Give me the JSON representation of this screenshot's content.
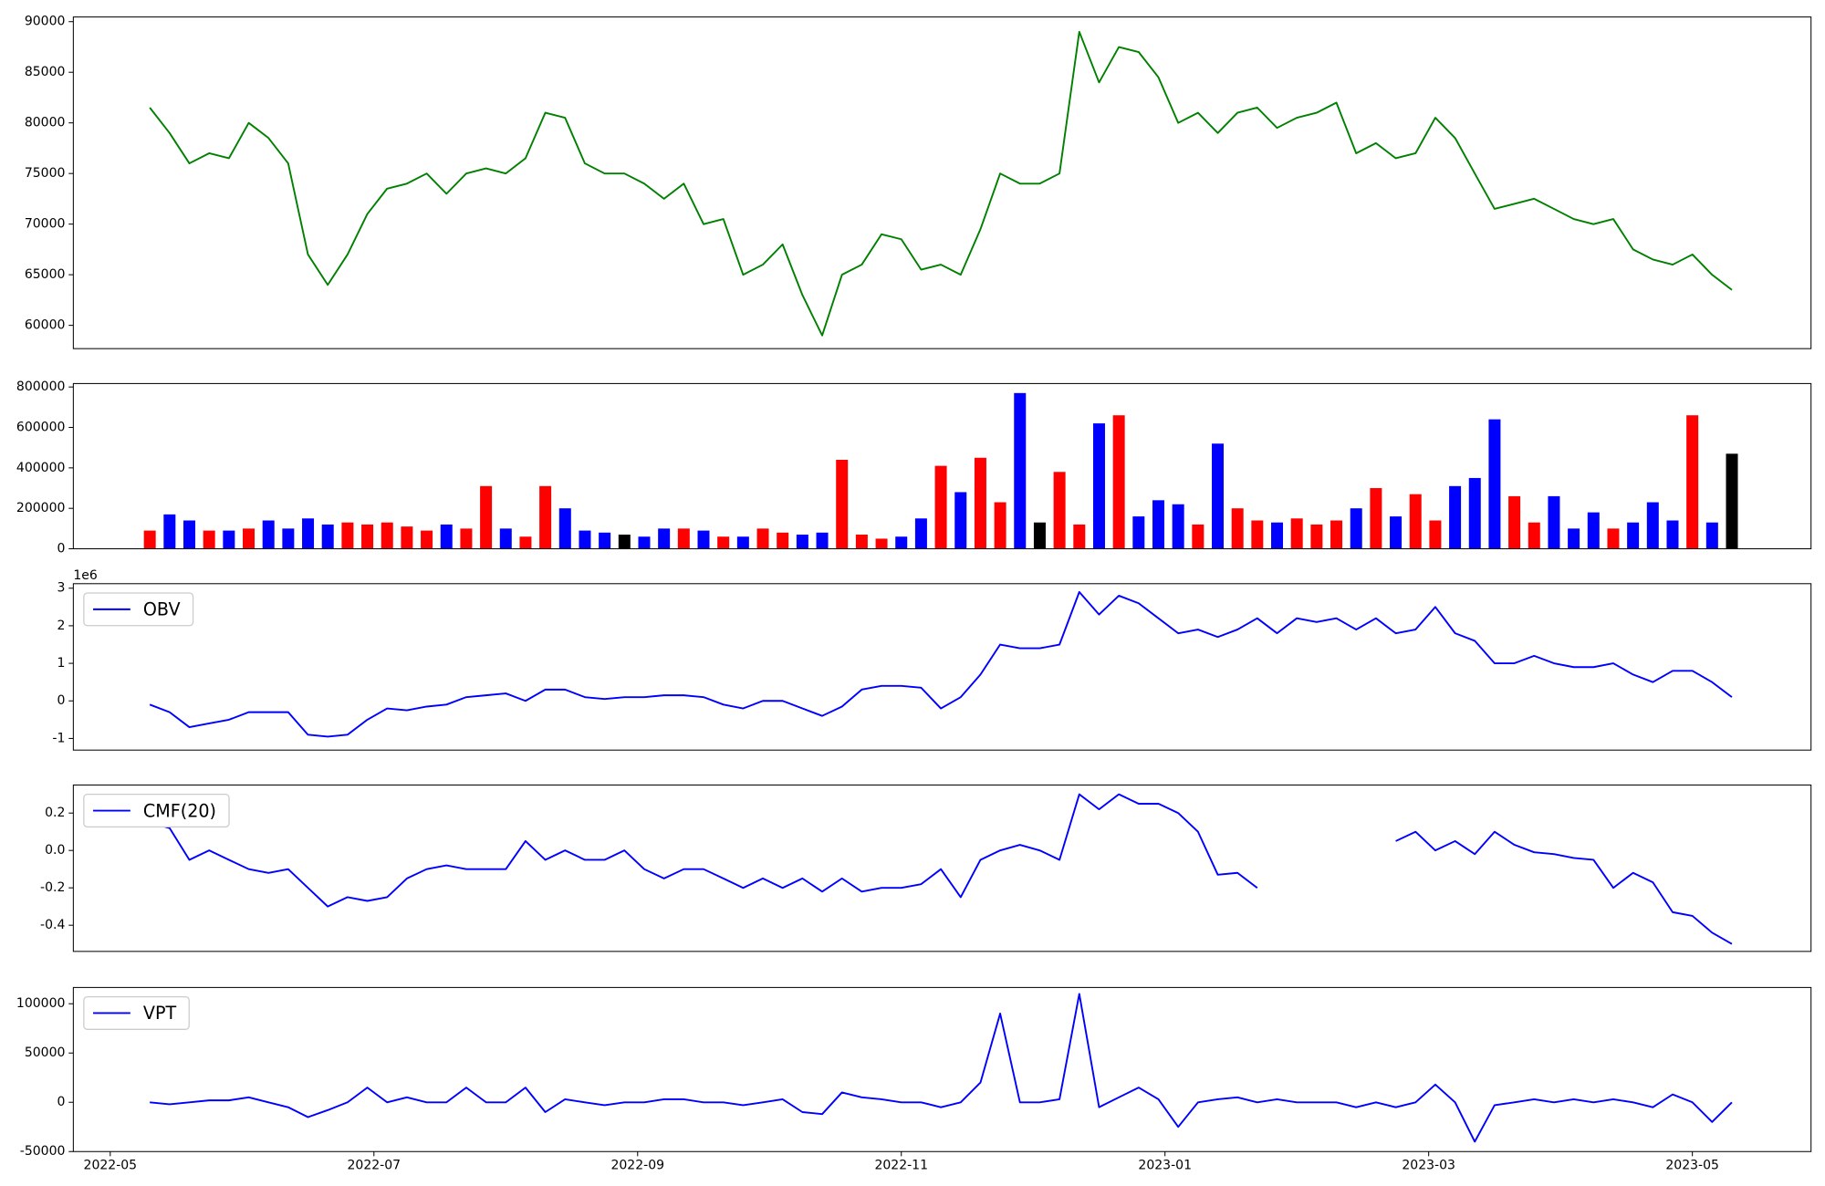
{
  "chart_data": {
    "type": "line",
    "x": [
      0.3,
      0.45,
      0.6,
      0.75,
      0.9,
      1.05,
      1.2,
      1.35,
      1.5,
      1.65,
      1.8,
      1.95,
      2.1,
      2.25,
      2.4,
      2.55,
      2.7,
      2.85,
      3,
      3.15,
      3.3,
      3.45,
      3.6,
      3.75,
      3.9,
      4.05,
      4.2,
      4.35,
      4.5,
      4.65,
      4.8,
      4.95,
      5.1,
      5.25,
      5.4,
      5.55,
      5.7,
      5.85,
      6,
      6.15,
      6.3,
      6.45,
      6.6,
      6.75,
      6.9,
      7.05,
      7.2,
      7.35,
      7.5,
      7.65,
      7.8,
      7.95,
      8.1,
      8.25,
      8.4,
      8.55,
      8.7,
      8.85,
      9,
      9.15,
      9.3,
      9.45,
      9.6,
      9.75,
      9.9,
      10.05,
      10.2,
      10.35,
      10.5,
      10.65,
      10.8,
      10.95,
      11.1,
      11.25,
      11.4,
      11.55,
      11.7,
      11.85,
      12,
      12.15,
      12.3
    ],
    "xlim": [
      -0.28,
      12.9
    ],
    "xticks": [
      {
        "value": 0,
        "label": "2022-05"
      },
      {
        "value": 2,
        "label": "2022-07"
      },
      {
        "value": 4,
        "label": "2022-09"
      },
      {
        "value": 6,
        "label": "2022-11"
      },
      {
        "value": 8,
        "label": "2023-01"
      },
      {
        "value": 10,
        "label": "2023-03"
      },
      {
        "value": 12,
        "label": "2023-05"
      }
    ],
    "panels": [
      {
        "type": "line",
        "ylim": [
          57700,
          90460
        ],
        "yticks": [
          60000,
          65000,
          70000,
          75000,
          80000,
          85000,
          90000
        ],
        "series": [
          {
            "color": "green",
            "values": [
              81500,
              79000,
              76000,
              77000,
              76500,
              80000,
              78500,
              76000,
              67000,
              64000,
              67000,
              71000,
              73500,
              74000,
              75000,
              73000,
              75000,
              75500,
              75000,
              76500,
              81000,
              80500,
              76000,
              75000,
              75000,
              74000,
              72500,
              74000,
              70000,
              70500,
              65000,
              66000,
              68000,
              63000,
              59000,
              65000,
              66000,
              69000,
              68500,
              65500,
              66000,
              65000,
              69500,
              75000,
              74000,
              74000,
              75000,
              89000,
              84000,
              87500,
              87000,
              84500,
              80000,
              81000,
              79000,
              81000,
              81500,
              79500,
              80500,
              81000,
              82000,
              77000,
              78000,
              76500,
              77000,
              80500,
              78500,
              75000,
              71500,
              72000,
              72500,
              71500,
              70500,
              70000,
              70500,
              67500,
              66500,
              66000,
              67000,
              65000,
              63500
            ]
          }
        ]
      },
      {
        "type": "bar",
        "ylim": [
          0,
          817000
        ],
        "yticks": [
          0,
          200000,
          400000,
          600000,
          800000
        ],
        "values": [
          90000,
          170000,
          140000,
          90000,
          90000,
          100000,
          140000,
          100000,
          150000,
          120000,
          130000,
          120000,
          130000,
          110000,
          90000,
          120000,
          100000,
          310000,
          100000,
          60000,
          310000,
          200000,
          90000,
          80000,
          70000,
          60000,
          100000,
          100000,
          90000,
          60000,
          60000,
          100000,
          80000,
          70000,
          80000,
          440000,
          70000,
          50000,
          60000,
          150000,
          410000,
          280000,
          450000,
          230000,
          770000,
          130000,
          380000,
          120000,
          620000,
          660000,
          160000,
          240000,
          220000,
          120000,
          520000,
          200000,
          140000,
          130000,
          150000,
          120000,
          140000,
          200000,
          300000,
          160000,
          270000,
          140000,
          310000,
          350000,
          640000,
          260000,
          130000,
          260000,
          100000,
          180000,
          100000,
          130000,
          230000,
          140000,
          660000,
          130000,
          470000
        ],
        "colors": [
          "red",
          "blue",
          "blue",
          "red",
          "blue",
          "red",
          "blue",
          "blue",
          "blue",
          "blue",
          "red",
          "red",
          "red",
          "red",
          "red",
          "blue",
          "red",
          "red",
          "blue",
          "red",
          "red",
          "blue",
          "blue",
          "blue",
          "black",
          "blue",
          "blue",
          "red",
          "blue",
          "red",
          "blue",
          "red",
          "red",
          "blue",
          "blue",
          "red",
          "red",
          "red",
          "blue",
          "blue",
          "red",
          "blue",
          "red",
          "red",
          "blue",
          "black",
          "red",
          "red",
          "blue",
          "red",
          "blue",
          "blue",
          "blue",
          "red",
          "blue",
          "red",
          "red",
          "blue",
          "red",
          "red",
          "red",
          "blue",
          "red",
          "blue",
          "red",
          "red",
          "blue",
          "blue",
          "blue",
          "red",
          "red",
          "blue",
          "blue",
          "blue",
          "red",
          "blue",
          "blue",
          "blue",
          "red",
          "blue",
          "black"
        ]
      },
      {
        "type": "line",
        "ylim": [
          -1.31,
          3.12
        ],
        "yticks": [
          -1,
          0,
          1,
          2,
          3
        ],
        "offset_label": "1e6",
        "legend": "upper left",
        "series": [
          {
            "name": "OBV",
            "color": "blue",
            "values": [
              -0.1,
              -0.3,
              -0.7,
              -0.6,
              -0.5,
              -0.3,
              -0.3,
              -0.3,
              -0.9,
              -0.95,
              -0.9,
              -0.5,
              -0.2,
              -0.25,
              -0.15,
              -0.1,
              0.1,
              0.15,
              0.2,
              0,
              0.3,
              0.3,
              0.1,
              0.05,
              0.1,
              0.1,
              0.15,
              0.15,
              0.1,
              -0.1,
              -0.2,
              0,
              0,
              -0.2,
              -0.4,
              -0.15,
              0.3,
              0.4,
              0.4,
              0.35,
              -0.2,
              0.1,
              0.7,
              1.5,
              1.4,
              1.4,
              1.5,
              2.9,
              2.3,
              2.8,
              2.6,
              2.2,
              1.8,
              1.9,
              1.7,
              1.9,
              2.2,
              1.8,
              2.2,
              2.1,
              2.2,
              1.9,
              2.2,
              1.8,
              1.9,
              2.5,
              1.8,
              1.6,
              1,
              1,
              1.2,
              1,
              0.9,
              0.9,
              1,
              0.7,
              0.5,
              0.8,
              0.8,
              0.5,
              0.1
            ]
          }
        ]
      },
      {
        "type": "line",
        "ylim": [
          -0.54,
          0.35
        ],
        "yticks": [
          -0.4,
          -0.2,
          {
            "value": 0,
            "label": "0.0"
          },
          0.2
        ],
        "legend": "upper left",
        "series": [
          {
            "name": "CMF(20)",
            "color": "blue",
            "values": [
              0.15,
              0.12,
              -0.05,
              0,
              -0.05,
              -0.1,
              -0.12,
              -0.1,
              -0.2,
              -0.3,
              -0.25,
              -0.27,
              -0.25,
              -0.15,
              -0.1,
              -0.08,
              -0.1,
              -0.1,
              -0.1,
              0.05,
              -0.05,
              0,
              -0.05,
              -0.05,
              0,
              -0.1,
              -0.15,
              -0.1,
              -0.1,
              -0.15,
              -0.2,
              -0.15,
              -0.2,
              -0.15,
              -0.22,
              -0.15,
              -0.22,
              -0.2,
              -0.2,
              -0.18,
              -0.1,
              -0.25,
              -0.05,
              0,
              0.03,
              0,
              -0.05,
              0.3,
              0.22,
              0.3,
              0.25,
              0.25,
              0.2,
              0.1,
              -0.13,
              -0.12,
              -0.2,
              null,
              null,
              null,
              null,
              null,
              null,
              0.05,
              0.1,
              0,
              0.05,
              -0.02,
              0.1,
              0.03,
              -0.01,
              -0.02,
              -0.04,
              -0.05,
              -0.2,
              -0.12,
              -0.17,
              -0.33,
              -0.35,
              -0.44,
              -0.5
            ]
          }
        ]
      },
      {
        "type": "line",
        "ylim": [
          -50000,
          116500
        ],
        "yticks": [
          -50000,
          0,
          50000,
          100000
        ],
        "legend": "upper left",
        "show_xticks": true,
        "series": [
          {
            "name": "VPT",
            "color": "blue",
            "values": [
              0,
              -2000,
              0,
              2000,
              2000,
              5000,
              0,
              -5000,
              -15000,
              -8000,
              0,
              15000,
              0,
              5000,
              0,
              0,
              15000,
              0,
              0,
              15000,
              -10000,
              3000,
              0,
              -3000,
              0,
              0,
              3000,
              3000,
              0,
              0,
              -3000,
              0,
              3000,
              -10000,
              -12000,
              10000,
              5000,
              3000,
              0,
              0,
              -5000,
              0,
              20000,
              90000,
              0,
              0,
              3000,
              110000,
              -5000,
              5000,
              15000,
              3000,
              -25000,
              0,
              3000,
              5000,
              0,
              3000,
              0,
              0,
              0,
              -5000,
              0,
              -5000,
              0,
              18000,
              0,
              -40000,
              -3000,
              0,
              3000,
              0,
              3000,
              0,
              3000,
              0,
              -5000,
              8000,
              0,
              -20000,
              0
            ]
          }
        ]
      }
    ]
  }
}
